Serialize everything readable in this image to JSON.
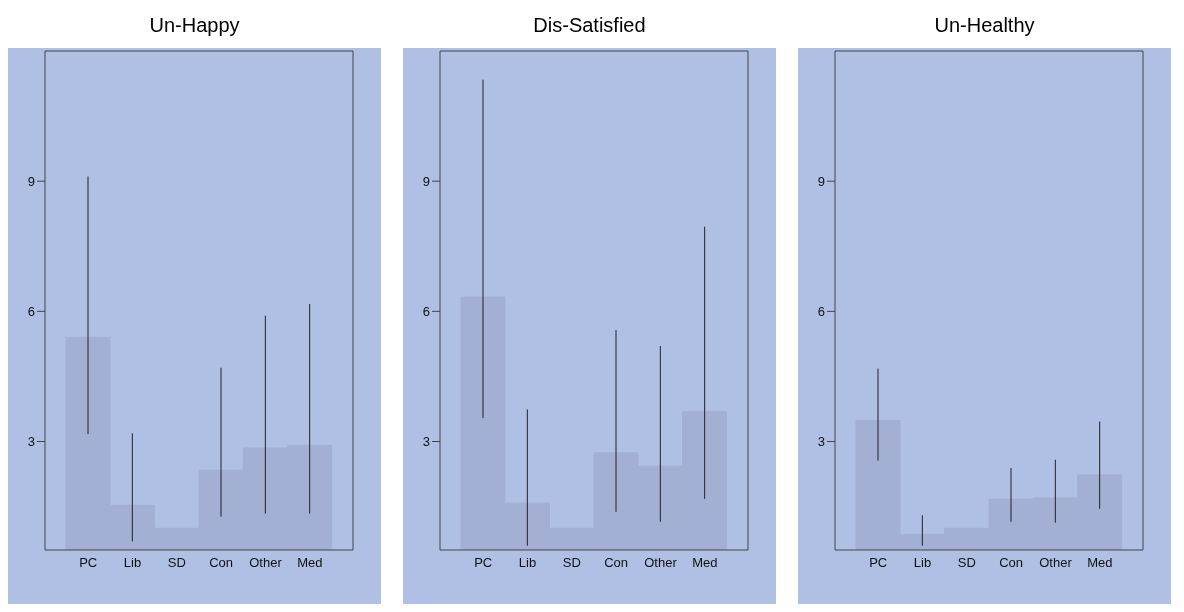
{
  "chart_data": [
    {
      "type": "bar",
      "title": "Un-Happy",
      "categories": [
        "PC",
        "Lib",
        "SD",
        "Con",
        "Other",
        "Med"
      ],
      "color": "#a3afd3",
      "values": [
        5.4,
        1.53,
        1.0,
        2.34,
        2.85,
        2.91
      ],
      "errors": [
        [
          3.17,
          9.11
        ],
        [
          0.7,
          3.19
        ],
        null,
        [
          1.27,
          4.7
        ],
        [
          1.34,
          5.9
        ],
        [
          1.34,
          6.17
        ]
      ],
      "ylim": [
        0.5,
        12
      ],
      "yticks": [
        3,
        6,
        9
      ],
      "grid": false
    },
    {
      "type": "bar",
      "title": "Dis-Satisfied",
      "categories": [
        "PC",
        "Lib",
        "SD",
        "Con",
        "Other",
        "Med"
      ],
      "color": "#a3afd3",
      "values": [
        6.33,
        1.58,
        1.0,
        2.74,
        2.43,
        3.69
      ],
      "errors": [
        [
          3.54,
          11.34
        ],
        [
          0.6,
          3.74
        ],
        null,
        [
          1.38,
          5.57
        ],
        [
          1.15,
          5.2
        ],
        [
          1.68,
          7.95
        ]
      ],
      "ylim": [
        0.5,
        12
      ],
      "yticks": [
        3,
        6,
        9
      ],
      "grid": false
    },
    {
      "type": "bar",
      "title": "Un-Healthy",
      "categories": [
        "PC",
        "Lib",
        "SD",
        "Con",
        "Other",
        "Med"
      ],
      "color": "#a3afd3",
      "values": [
        3.48,
        0.86,
        1.0,
        1.67,
        1.7,
        2.23
      ],
      "errors": [
        [
          2.56,
          4.68
        ],
        [
          0.6,
          1.3
        ],
        null,
        [
          1.15,
          2.39
        ],
        [
          1.13,
          2.58
        ],
        [
          1.45,
          3.46
        ]
      ],
      "ylim": [
        0.5,
        12
      ],
      "yticks": [
        3,
        6,
        9
      ],
      "grid": false
    }
  ]
}
